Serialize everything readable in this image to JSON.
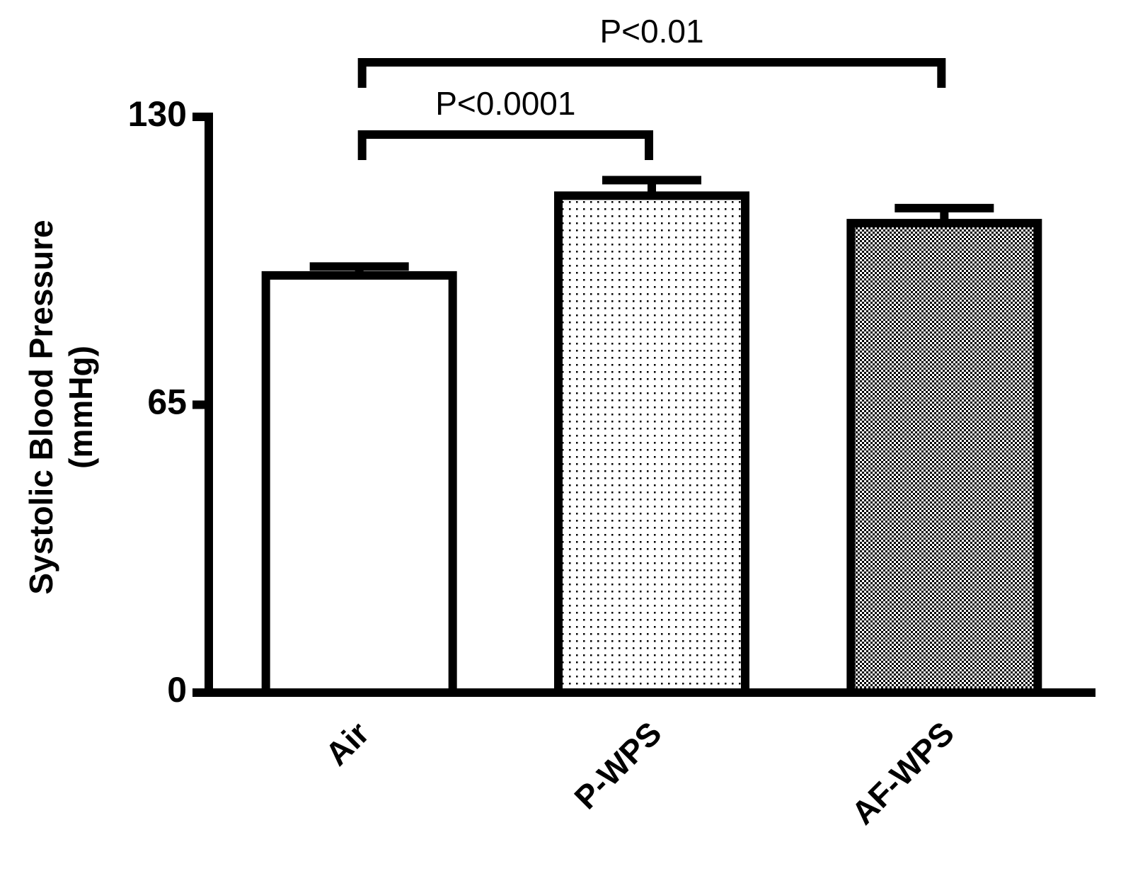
{
  "chart_data": {
    "type": "bar",
    "ylabel": [
      "Systolic Blood Pressure",
      "(mmHg)"
    ],
    "categories": [
      "Air",
      "P-WPS",
      "AF-WPS"
    ],
    "values": [
      94.2,
      112.2,
      106
    ],
    "errors": [
      2,
      3.5,
      3.4
    ],
    "color": "#000000",
    "patterns": [
      "none",
      "dots",
      "checker"
    ],
    "ylim": [
      0,
      130
    ],
    "yticks": [
      0,
      65,
      130
    ],
    "annotations": [
      "P<0.0001",
      "P<0.01"
    ]
  }
}
